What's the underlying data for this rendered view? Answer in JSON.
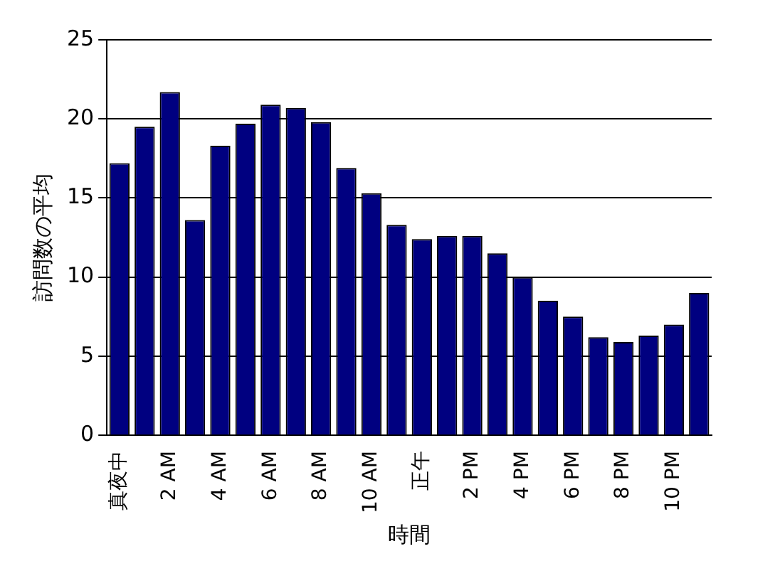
{
  "chart_data": {
    "type": "bar",
    "xlabel": "時間",
    "ylabel": "訪問数の平均",
    "categories": [
      "真夜中",
      null,
      "2 AM",
      null,
      "4 AM",
      null,
      "6 AM",
      null,
      "8 AM",
      null,
      "10 AM",
      null,
      "正午",
      null,
      "2 PM",
      null,
      "4 PM",
      null,
      "6 PM",
      null,
      "8 PM",
      null,
      "10 PM",
      null
    ],
    "values": [
      17.2,
      19.5,
      21.7,
      13.6,
      18.3,
      19.7,
      20.9,
      20.7,
      19.8,
      16.9,
      15.3,
      13.3,
      12.4,
      12.6,
      12.6,
      11.5,
      10.0,
      8.5,
      7.5,
      6.2,
      5.9,
      6.3,
      7.0,
      9.0
    ],
    "color": "#000080",
    "ylim": [
      0,
      25
    ],
    "yticks": [
      0,
      5,
      10,
      15,
      20,
      25
    ],
    "grid": "y",
    "legend": false
  }
}
